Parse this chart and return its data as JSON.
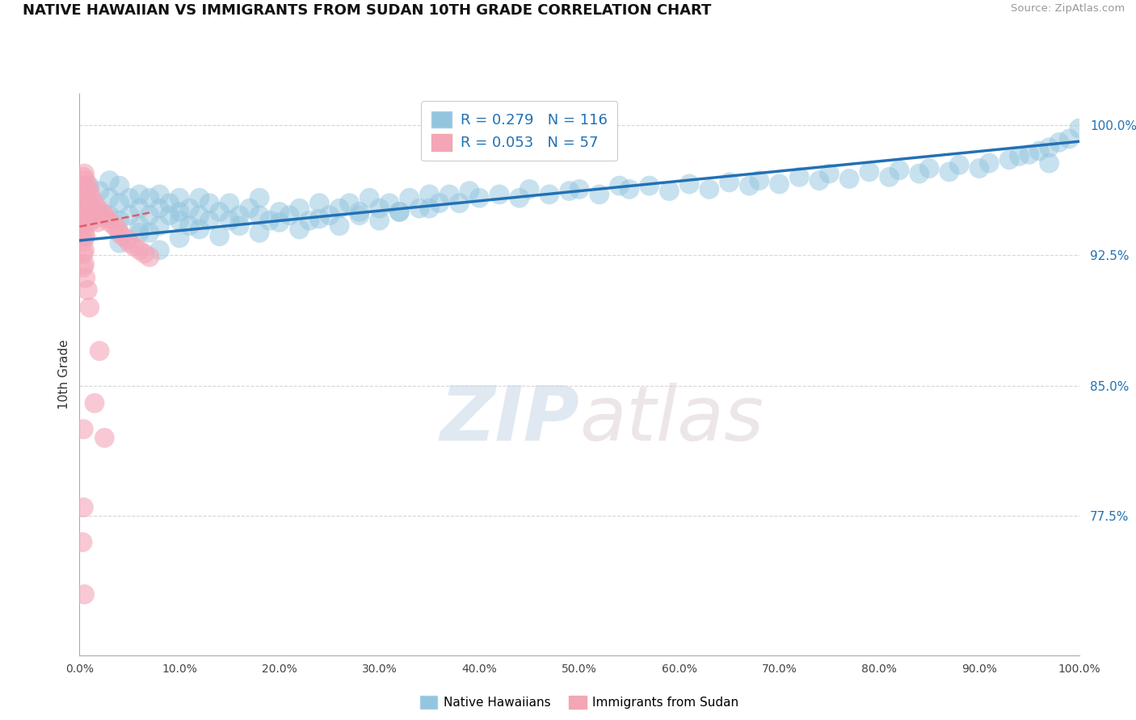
{
  "title": "NATIVE HAWAIIAN VS IMMIGRANTS FROM SUDAN 10TH GRADE CORRELATION CHART",
  "source": "Source: ZipAtlas.com",
  "ylabel": "10th Grade",
  "ylabel_right_ticks": [
    77.5,
    85.0,
    92.5,
    100.0
  ],
  "ylabel_right_labels": [
    "77.5%",
    "85.0%",
    "92.5%",
    "100.0%"
  ],
  "xmin": 0.0,
  "xmax": 1.0,
  "ymin": 0.695,
  "ymax": 1.018,
  "blue_R": 0.279,
  "blue_N": 116,
  "pink_R": 0.053,
  "pink_N": 57,
  "blue_color": "#92c5de",
  "pink_color": "#f4a6b8",
  "blue_line_color": "#2171b5",
  "pink_line_color": "#e05c6a",
  "legend_blue_label": "Native Hawaiians",
  "legend_pink_label": "Immigrants from Sudan",
  "watermark_zip": "ZIP",
  "watermark_atlas": "atlas",
  "background_color": "#ffffff",
  "grid_color": "#cccccc",
  "blue_scatter_x": [
    0.01,
    0.01,
    0.02,
    0.02,
    0.03,
    0.03,
    0.03,
    0.04,
    0.04,
    0.04,
    0.05,
    0.05,
    0.06,
    0.06,
    0.06,
    0.07,
    0.07,
    0.07,
    0.08,
    0.08,
    0.08,
    0.09,
    0.09,
    0.1,
    0.1,
    0.1,
    0.11,
    0.11,
    0.12,
    0.12,
    0.13,
    0.13,
    0.14,
    0.15,
    0.15,
    0.16,
    0.17,
    0.18,
    0.18,
    0.19,
    0.2,
    0.21,
    0.22,
    0.23,
    0.24,
    0.25,
    0.26,
    0.27,
    0.28,
    0.29,
    0.3,
    0.31,
    0.32,
    0.33,
    0.34,
    0.35,
    0.36,
    0.37,
    0.38,
    0.39,
    0.4,
    0.42,
    0.44,
    0.45,
    0.47,
    0.49,
    0.5,
    0.52,
    0.54,
    0.55,
    0.57,
    0.59,
    0.61,
    0.63,
    0.65,
    0.67,
    0.68,
    0.7,
    0.72,
    0.74,
    0.75,
    0.77,
    0.79,
    0.81,
    0.82,
    0.84,
    0.85,
    0.87,
    0.88,
    0.9,
    0.91,
    0.93,
    0.94,
    0.95,
    0.96,
    0.97,
    0.97,
    0.98,
    0.99,
    1.0,
    0.04,
    0.06,
    0.08,
    0.1,
    0.12,
    0.14,
    0.16,
    0.18,
    0.2,
    0.22,
    0.24,
    0.26,
    0.28,
    0.3,
    0.32,
    0.35
  ],
  "blue_scatter_y": [
    0.965,
    0.955,
    0.962,
    0.948,
    0.958,
    0.948,
    0.968,
    0.955,
    0.945,
    0.965,
    0.958,
    0.948,
    0.952,
    0.942,
    0.96,
    0.948,
    0.958,
    0.938,
    0.952,
    0.942,
    0.96,
    0.948,
    0.955,
    0.95,
    0.958,
    0.945,
    0.952,
    0.942,
    0.948,
    0.958,
    0.945,
    0.955,
    0.95,
    0.945,
    0.955,
    0.948,
    0.952,
    0.948,
    0.958,
    0.945,
    0.95,
    0.948,
    0.952,
    0.945,
    0.955,
    0.948,
    0.952,
    0.955,
    0.95,
    0.958,
    0.952,
    0.955,
    0.95,
    0.958,
    0.952,
    0.96,
    0.955,
    0.96,
    0.955,
    0.962,
    0.958,
    0.96,
    0.958,
    0.963,
    0.96,
    0.962,
    0.963,
    0.96,
    0.965,
    0.963,
    0.965,
    0.962,
    0.966,
    0.963,
    0.967,
    0.965,
    0.968,
    0.966,
    0.97,
    0.968,
    0.972,
    0.969,
    0.973,
    0.97,
    0.974,
    0.972,
    0.975,
    0.973,
    0.977,
    0.975,
    0.978,
    0.98,
    0.982,
    0.983,
    0.985,
    0.987,
    0.978,
    0.99,
    0.992,
    0.998,
    0.932,
    0.938,
    0.928,
    0.935,
    0.94,
    0.936,
    0.942,
    0.938,
    0.944,
    0.94,
    0.946,
    0.942,
    0.948,
    0.945,
    0.95,
    0.952
  ],
  "pink_scatter_x": [
    0.004,
    0.004,
    0.004,
    0.004,
    0.004,
    0.004,
    0.004,
    0.004,
    0.005,
    0.005,
    0.005,
    0.005,
    0.005,
    0.005,
    0.005,
    0.005,
    0.006,
    0.006,
    0.006,
    0.006,
    0.006,
    0.008,
    0.008,
    0.008,
    0.01,
    0.01,
    0.01,
    0.012,
    0.012,
    0.015,
    0.015,
    0.018,
    0.018,
    0.022,
    0.025,
    0.028,
    0.03,
    0.035,
    0.038,
    0.04,
    0.043,
    0.048,
    0.05,
    0.055,
    0.06,
    0.065,
    0.07,
    0.015,
    0.02,
    0.025,
    0.01,
    0.008,
    0.006,
    0.004,
    0.004,
    0.005,
    0.003
  ],
  "pink_scatter_y": [
    0.97,
    0.962,
    0.955,
    0.948,
    0.94,
    0.933,
    0.926,
    0.918,
    0.972,
    0.965,
    0.958,
    0.95,
    0.943,
    0.936,
    0.928,
    0.92,
    0.968,
    0.96,
    0.952,
    0.944,
    0.936,
    0.965,
    0.956,
    0.948,
    0.962,
    0.953,
    0.944,
    0.958,
    0.95,
    0.955,
    0.946,
    0.952,
    0.944,
    0.95,
    0.948,
    0.946,
    0.944,
    0.942,
    0.94,
    0.938,
    0.936,
    0.934,
    0.932,
    0.93,
    0.928,
    0.926,
    0.924,
    0.84,
    0.87,
    0.82,
    0.895,
    0.905,
    0.912,
    0.78,
    0.825,
    0.73,
    0.76
  ],
  "blue_trend_y_start": 0.9335,
  "blue_trend_y_end": 0.9905,
  "pink_trend_x_start": 0.0,
  "pink_trend_x_end": 0.07,
  "pink_trend_y_start": 0.9415,
  "pink_trend_y_end": 0.9495
}
